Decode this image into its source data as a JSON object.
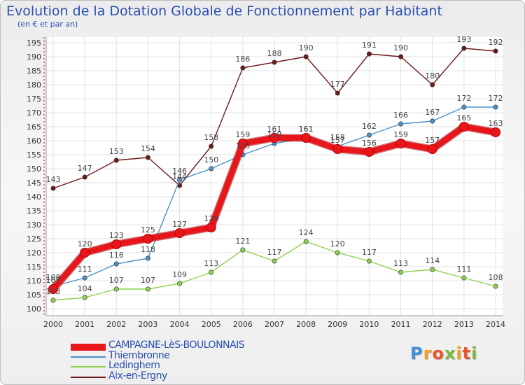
{
  "title": "Evolution de la Dotation Globale de Fonctionnement par Habitant",
  "subtitle": "(en € et par an)",
  "logo_text": "Proxiti",
  "chart_data": {
    "type": "line",
    "title": "Evolution de la Dotation Globale de Fonctionnement par Habitant",
    "subtitle": "(en € et par an)",
    "xlabel": "",
    "ylabel": "",
    "ylim": [
      100,
      195
    ],
    "y_ticks": [
      100,
      105,
      110,
      115,
      120,
      125,
      130,
      135,
      140,
      145,
      150,
      155,
      160,
      165,
      170,
      175,
      180,
      185,
      190,
      195
    ],
    "grid": true,
    "legend_position": "bottom-left",
    "categories": [
      "2000",
      "2001",
      "2002",
      "2003",
      "2004",
      "2005",
      "2006",
      "2007",
      "2008",
      "2009",
      "2010",
      "2011",
      "2012",
      "2013",
      "2014"
    ],
    "series": [
      {
        "name": "Aix-en-Ergny",
        "color": "#6e1a1a",
        "values": [
          143,
          147,
          153,
          154,
          144,
          158,
          186,
          188,
          190,
          177,
          191,
          190,
          180,
          193,
          192
        ]
      },
      {
        "name": "Thiembronne",
        "color": "#4b92c7",
        "values": [
          108,
          111,
          116,
          118,
          146,
          150,
          155,
          159,
          161,
          158,
          162,
          166,
          167,
          172,
          172
        ]
      },
      {
        "name": "Ledinghem",
        "color": "#8fd14f",
        "values": [
          103,
          104,
          107,
          107,
          109,
          113,
          121,
          117,
          124,
          120,
          117,
          113,
          114,
          111,
          108
        ]
      },
      {
        "name": "CAMPAGNE-LèS-BOULONNAIS",
        "color": "#e8161b",
        "values": [
          107,
          120,
          123,
          125,
          127,
          129,
          159,
          161,
          161,
          157,
          156,
          159,
          157,
          165,
          163
        ]
      }
    ]
  },
  "legend": [
    {
      "label": "CAMPAGNE-LèS-BOULONNAIS",
      "color": "#e8161b",
      "thickness": "thick"
    },
    {
      "label": "Thiembronne",
      "color": "#4b92c7",
      "thickness": "thin"
    },
    {
      "label": "Ledinghem",
      "color": "#8fd14f",
      "thickness": "thin"
    },
    {
      "label": "Aix-en-Ergny",
      "color": "#6e1a1a",
      "thickness": "thin"
    }
  ]
}
